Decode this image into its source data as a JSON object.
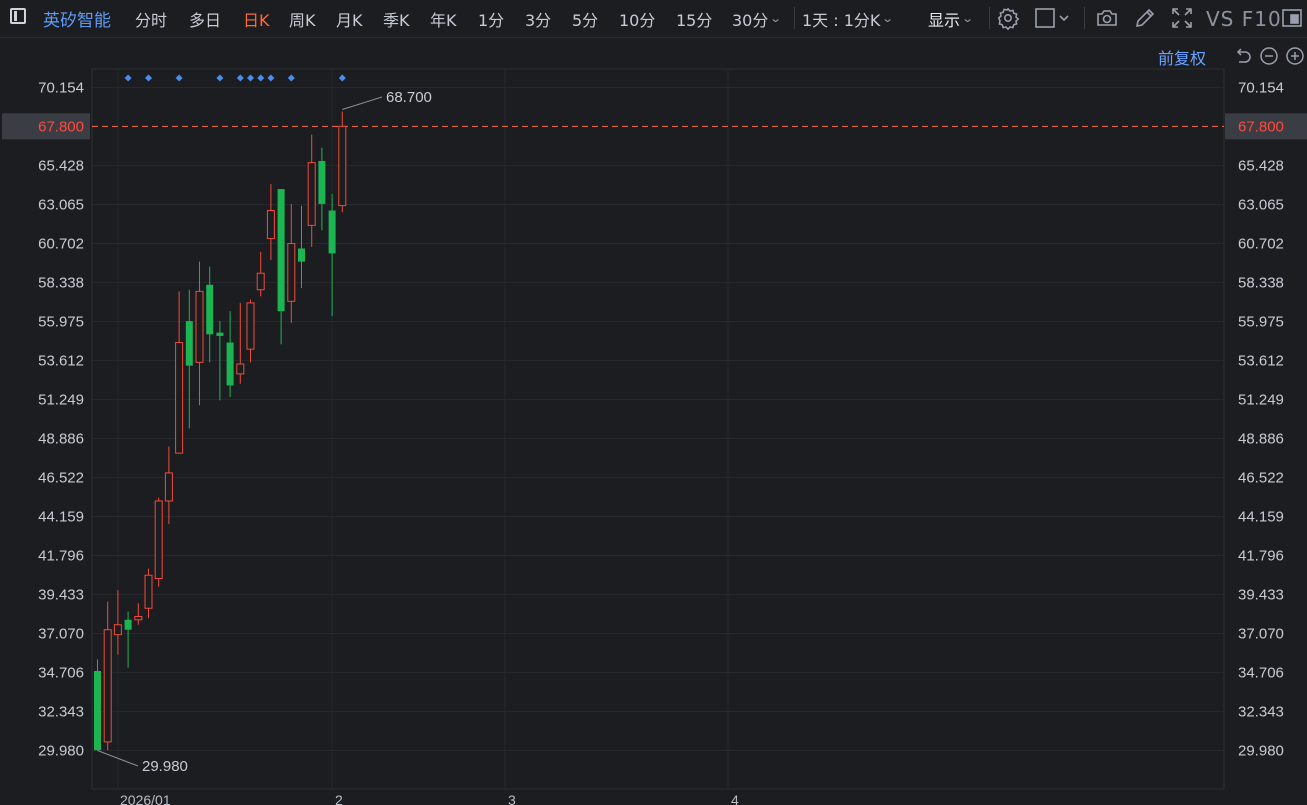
{
  "toolbar": {
    "stock_name": "英矽智能",
    "periods": [
      "分时",
      "多日",
      "日K",
      "周K",
      "月K",
      "季K",
      "年K",
      "1分",
      "3分",
      "5分",
      "10分",
      "15分"
    ],
    "period_30": "30分",
    "active_period": "日K",
    "interval_selector": "1天 : 1分K",
    "display_label": "显示",
    "vs_f10": "VS F10",
    "icons": [
      "settings-icon",
      "box-select-icon",
      "camera-icon",
      "pen-icon",
      "fullscreen-icon",
      "vs-f10-icon",
      "window-icon"
    ]
  },
  "chart_tools": {
    "restore_label": "前复权",
    "icons": [
      "undo-icon",
      "zoom-out-icon",
      "zoom-in-icon"
    ]
  },
  "colors": {
    "up": "#f04b3a",
    "down": "#1bb552",
    "accent": "#ff6a33",
    "marker": "#4a8df0",
    "last_line": "#ff6a3d"
  },
  "chart_data": {
    "type": "candlestick",
    "y_ticks": [
      "70.154",
      "67.800",
      "65.428",
      "63.065",
      "60.702",
      "58.338",
      "55.975",
      "53.612",
      "51.249",
      "48.886",
      "46.522",
      "44.159",
      "41.796",
      "39.433",
      "37.070",
      "34.706",
      "32.343",
      "29.980"
    ],
    "ylim": [
      29.98,
      70.154
    ],
    "last_price": "67.800",
    "high_label": "68.700",
    "low_label": "29.980",
    "x_labels": [
      "2026/01",
      "2",
      "3",
      "4"
    ],
    "marker_count": 10,
    "candles": [
      {
        "o": 34.8,
        "c": 30.0,
        "h": 35.5,
        "l": 29.98
      },
      {
        "o": 30.5,
        "c": 37.3,
        "h": 39.0,
        "l": 30.0
      },
      {
        "o": 37.0,
        "c": 37.6,
        "h": 39.7,
        "l": 35.8
      },
      {
        "o": 37.9,
        "c": 37.3,
        "h": 38.4,
        "l": 35.0
      },
      {
        "o": 37.9,
        "c": 38.1,
        "h": 38.9,
        "l": 37.6
      },
      {
        "o": 38.6,
        "c": 40.6,
        "h": 41.0,
        "l": 38.0
      },
      {
        "o": 40.4,
        "c": 45.1,
        "h": 45.3,
        "l": 39.9
      },
      {
        "o": 45.1,
        "c": 46.8,
        "h": 48.4,
        "l": 43.7
      },
      {
        "o": 48.0,
        "c": 54.7,
        "h": 57.8,
        "l": 48.0
      },
      {
        "o": 56.0,
        "c": 53.3,
        "h": 57.9,
        "l": 49.5
      },
      {
        "o": 53.5,
        "c": 57.8,
        "h": 59.6,
        "l": 50.9
      },
      {
        "o": 58.2,
        "c": 55.2,
        "h": 59.3,
        "l": 53.5
      },
      {
        "o": 55.3,
        "c": 55.1,
        "h": 56.0,
        "l": 51.2
      },
      {
        "o": 54.7,
        "c": 52.1,
        "h": 56.6,
        "l": 51.4
      },
      {
        "o": 52.8,
        "c": 53.4,
        "h": 57.1,
        "l": 52.2
      },
      {
        "o": 54.3,
        "c": 57.1,
        "h": 57.3,
        "l": 53.5
      },
      {
        "o": 57.9,
        "c": 58.9,
        "h": 60.2,
        "l": 57.5
      },
      {
        "o": 61.0,
        "c": 62.7,
        "h": 64.3,
        "l": 59.7
      },
      {
        "o": 64.0,
        "c": 56.6,
        "h": 64.0,
        "l": 54.6
      },
      {
        "o": 57.2,
        "c": 60.7,
        "h": 63.1,
        "l": 55.9
      },
      {
        "o": 60.4,
        "c": 59.6,
        "h": 63.0,
        "l": 58.0
      },
      {
        "o": 61.8,
        "c": 65.6,
        "h": 67.3,
        "l": 60.5
      },
      {
        "o": 65.7,
        "c": 63.1,
        "h": 66.5,
        "l": 61.5
      },
      {
        "o": 62.7,
        "c": 60.1,
        "h": 63.7,
        "l": 56.3
      },
      {
        "o": 63.0,
        "c": 67.8,
        "h": 68.7,
        "l": 62.6
      }
    ]
  }
}
